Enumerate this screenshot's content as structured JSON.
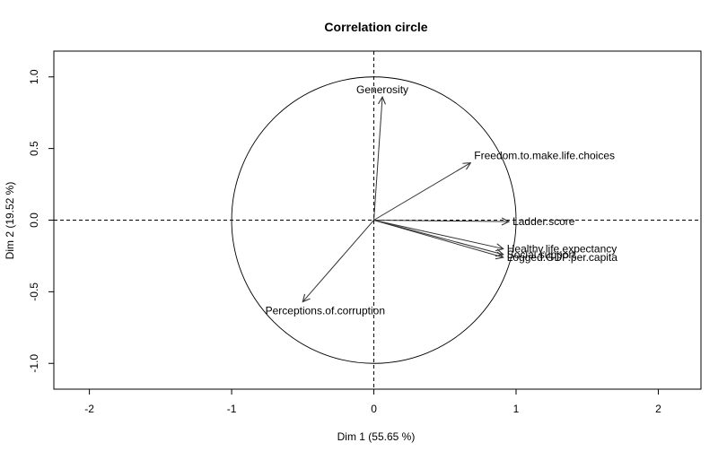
{
  "chart_data": {
    "type": "scatter",
    "title": "Correlation circle",
    "xlabel": "Dim 1 (55.65 %)",
    "ylabel": "Dim 2 (19.52 %)",
    "xlim": [
      -2.25,
      2.3
    ],
    "ylim": [
      -1.18,
      1.18
    ],
    "x_ticks": [
      -2,
      -1,
      0,
      1,
      2
    ],
    "x_tick_labels": [
      "-2",
      "-1",
      "0",
      "1",
      "2"
    ],
    "y_ticks": [
      -1.0,
      -0.5,
      0.0,
      0.5,
      1.0
    ],
    "y_tick_labels": [
      "-1.0",
      "-0.5",
      "0.0",
      "0.5",
      "1.0"
    ],
    "grid": false,
    "reference_lines": [
      {
        "orientation": "horizontal",
        "value": 0,
        "style": "dashed"
      },
      {
        "orientation": "vertical",
        "value": 0,
        "style": "dashed"
      }
    ],
    "unit_circle_radius": 1,
    "variables": [
      {
        "name": "Ladder.score",
        "x": 0.95,
        "y": -0.01
      },
      {
        "name": "Logged.GDP.per.capita",
        "x": 0.91,
        "y": -0.26
      },
      {
        "name": "Social.support",
        "x": 0.91,
        "y": -0.24
      },
      {
        "name": "Healthy.life.expectancy",
        "x": 0.91,
        "y": -0.2
      },
      {
        "name": "Freedom.to.make.life.choices",
        "x": 0.68,
        "y": 0.4
      },
      {
        "name": "Generosity",
        "x": 0.06,
        "y": 0.86
      },
      {
        "name": "Perceptions.of.corruption",
        "x": -0.5,
        "y": -0.57
      }
    ]
  }
}
